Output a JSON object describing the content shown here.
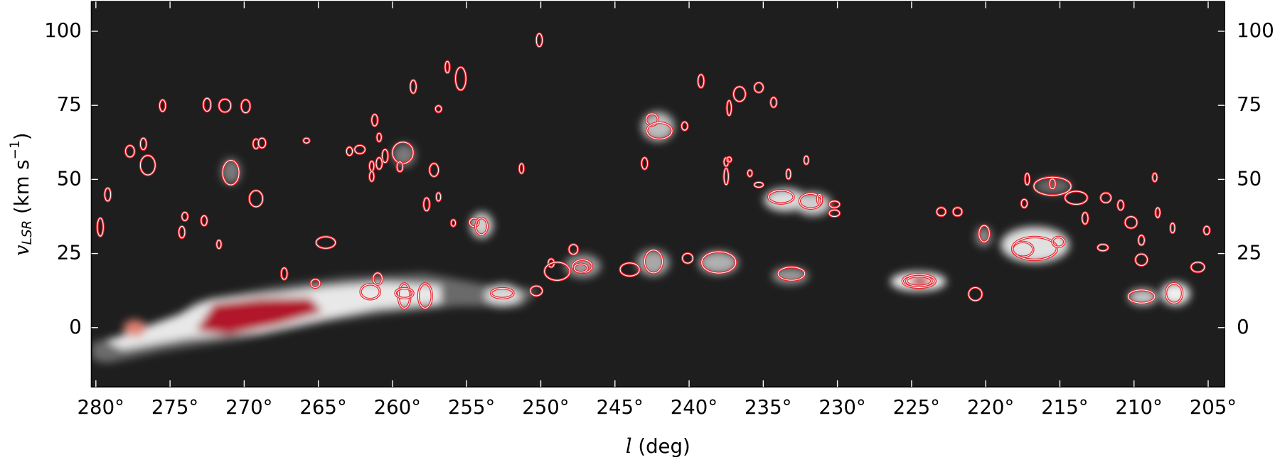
{
  "chart_data": {
    "type": "ellipses",
    "xlabel": [
      "l",
      " (deg)"
    ],
    "ylabel": [
      "v",
      "LSR",
      " (km s",
      "−1",
      ")"
    ],
    "xlim": [
      280.3,
      203.9
    ],
    "ylim": [
      -20,
      110
    ],
    "xticks": [
      {
        "value": 280,
        "label": "280°"
      },
      {
        "value": 275,
        "label": "275°"
      },
      {
        "value": 270,
        "label": "270°"
      },
      {
        "value": 265,
        "label": "265°"
      },
      {
        "value": 260,
        "label": "260°"
      },
      {
        "value": 255,
        "label": "255°"
      },
      {
        "value": 250,
        "label": "250°"
      },
      {
        "value": 245,
        "label": "245°"
      },
      {
        "value": 240,
        "label": "240°"
      },
      {
        "value": 235,
        "label": "235°"
      },
      {
        "value": 230,
        "label": "230°"
      },
      {
        "value": 225,
        "label": "225°"
      },
      {
        "value": 220,
        "label": "220°"
      },
      {
        "value": 215,
        "label": "215°"
      },
      {
        "value": 210,
        "label": "210°"
      },
      {
        "value": 205,
        "label": "205°"
      }
    ],
    "yticks": [
      0,
      25,
      50,
      75,
      100
    ],
    "background": "#1e1e1e",
    "color": "#e8262f",
    "inner_color": "#ffffff",
    "x": [
      279.7,
      279.2,
      277.7,
      276.8,
      276.5,
      275.5,
      274.2,
      274.0,
      272.7,
      272.5,
      271.7,
      271.3,
      270.9,
      269.9,
      269.2,
      269.2,
      268.8,
      267.3,
      265.8,
      265.2,
      264.5,
      262.9,
      262.2,
      261.4,
      261.2,
      260.9,
      260.5,
      260.9,
      261.4,
      259.3,
      259.5,
      258.6,
      257.7,
      257.2,
      256.9,
      256.9,
      256.3,
      255.9,
      255.4,
      254.5,
      254.0,
      261.0,
      261.5,
      259.2,
      259.2,
      257.8,
      252.6,
      251.3,
      250.3,
      250.1,
      249.3,
      248.9,
      247.8,
      247.2,
      247.3,
      244.0,
      243.0,
      242.4,
      242.5,
      242.0,
      240.3,
      240.1,
      239.2,
      238.0,
      237.5,
      237.5,
      237.3,
      237.3,
      236.6,
      235.9,
      235.3,
      235.3,
      234.3,
      233.3,
      233.8,
      233.1,
      232.1,
      231.8,
      231.2,
      230.2,
      230.2,
      224.5,
      224.5,
      223.0,
      221.9,
      220.7,
      220.1,
      217.4,
      217.2,
      217.5,
      216.7,
      215.5,
      215.5,
      215.1,
      213.9,
      213.3,
      212.1,
      211.9,
      210.9,
      210.2,
      209.5,
      209.5,
      209.5,
      208.6,
      208.4,
      207.4,
      207.3,
      205.7,
      205.1
    ],
    "y": [
      33.9,
      44.9,
      59.5,
      62.0,
      54.8,
      74.9,
      32.2,
      37.5,
      36.1,
      75.2,
      28.1,
      74.9,
      52.3,
      74.7,
      43.5,
      62.0,
      62.3,
      18.2,
      63.1,
      14.9,
      28.7,
      59.5,
      60.1,
      54.5,
      70.0,
      64.2,
      57.9,
      55.4,
      51.0,
      59.0,
      54.3,
      81.3,
      41.6,
      53.2,
      73.8,
      44.1,
      87.9,
      35.3,
      84.0,
      35.5,
      34.2,
      16.5,
      12.1,
      10.7,
      11.6,
      10.7,
      11.6,
      53.7,
      12.4,
      97.0,
      21.8,
      19.0,
      26.4,
      20.7,
      20.1,
      19.6,
      55.4,
      22.3,
      70.2,
      66.4,
      68.0,
      23.4,
      83.2,
      22.0,
      55.9,
      51.0,
      74.1,
      56.7,
      78.8,
      52.1,
      48.2,
      81.0,
      76.0,
      51.8,
      44.1,
      18.2,
      56.5,
      42.7,
      43.3,
      41.6,
      38.6,
      15.7,
      15.7,
      39.1,
      39.1,
      11.3,
      31.7,
      41.9,
      50.1,
      26.4,
      26.7,
      47.7,
      48.5,
      28.9,
      43.8,
      36.9,
      27.0,
      43.8,
      41.3,
      35.5,
      29.5,
      22.9,
      10.5,
      50.7,
      38.8,
      33.6,
      11.6,
      20.4,
      32.8
    ],
    "width": [
      0.4,
      0.4,
      0.6,
      0.4,
      1.0,
      0.4,
      0.4,
      0.4,
      0.4,
      0.5,
      0.3,
      0.8,
      1.1,
      0.6,
      0.9,
      0.4,
      0.5,
      0.4,
      0.4,
      0.6,
      1.3,
      0.4,
      0.7,
      0.3,
      0.4,
      0.3,
      0.4,
      0.4,
      0.3,
      1.4,
      0.4,
      0.4,
      0.4,
      0.6,
      0.4,
      0.3,
      0.3,
      0.3,
      0.7,
      0.6,
      0.8,
      0.6,
      1.3,
      0.8,
      1.2,
      0.9,
      1.5,
      0.3,
      0.8,
      0.4,
      0.4,
      1.7,
      0.6,
      1.3,
      0.9,
      1.3,
      0.4,
      1.2,
      0.8,
      1.7,
      0.4,
      0.7,
      0.4,
      2.3,
      0.3,
      0.3,
      0.3,
      0.3,
      0.8,
      0.3,
      0.6,
      0.6,
      0.4,
      0.3,
      1.7,
      1.8,
      0.3,
      1.5,
      0.3,
      0.7,
      0.7,
      2.2,
      1.7,
      0.6,
      0.6,
      0.9,
      0.7,
      0.4,
      0.3,
      1.4,
      3.0,
      2.5,
      0.4,
      0.8,
      1.5,
      0.4,
      0.7,
      0.7,
      0.4,
      0.8,
      0.4,
      0.8,
      1.8,
      0.3,
      0.3,
      0.3,
      1.1,
      0.9,
      0.4
    ],
    "height": [
      6.1,
      4.4,
      3.9,
      3.9,
      6.6,
      3.9,
      3.9,
      2.8,
      3.3,
      4.4,
      2.8,
      4.4,
      8.3,
      4.4,
      5.5,
      3.3,
      3.3,
      3.9,
      1.7,
      2.8,
      3.9,
      2.8,
      2.8,
      3.3,
      3.9,
      2.8,
      4.4,
      3.9,
      3.3,
      7.2,
      3.3,
      4.4,
      4.4,
      4.4,
      2.2,
      2.8,
      3.9,
      2.2,
      7.7,
      2.8,
      5.5,
      3.9,
      5.0,
      8.3,
      3.3,
      8.3,
      3.3,
      3.3,
      3.3,
      4.4,
      2.8,
      6.1,
      3.3,
      4.4,
      2.8,
      4.4,
      3.9,
      7.7,
      3.9,
      5.5,
      2.8,
      3.3,
      4.4,
      7.2,
      2.8,
      5.5,
      5.0,
      1.7,
      5.0,
      2.2,
      1.7,
      3.3,
      3.3,
      3.3,
      4.4,
      4.4,
      2.8,
      5.0,
      3.3,
      2.2,
      2.2,
      4.4,
      3.3,
      2.8,
      2.8,
      4.4,
      5.5,
      2.8,
      3.9,
      5.0,
      7.7,
      6.1,
      3.3,
      3.3,
      4.4,
      3.9,
      2.2,
      3.3,
      3.3,
      3.9,
      3.3,
      3.9,
      4.4,
      2.8,
      3.3,
      3.3,
      6.6,
      3.3,
      2.8
    ]
  }
}
